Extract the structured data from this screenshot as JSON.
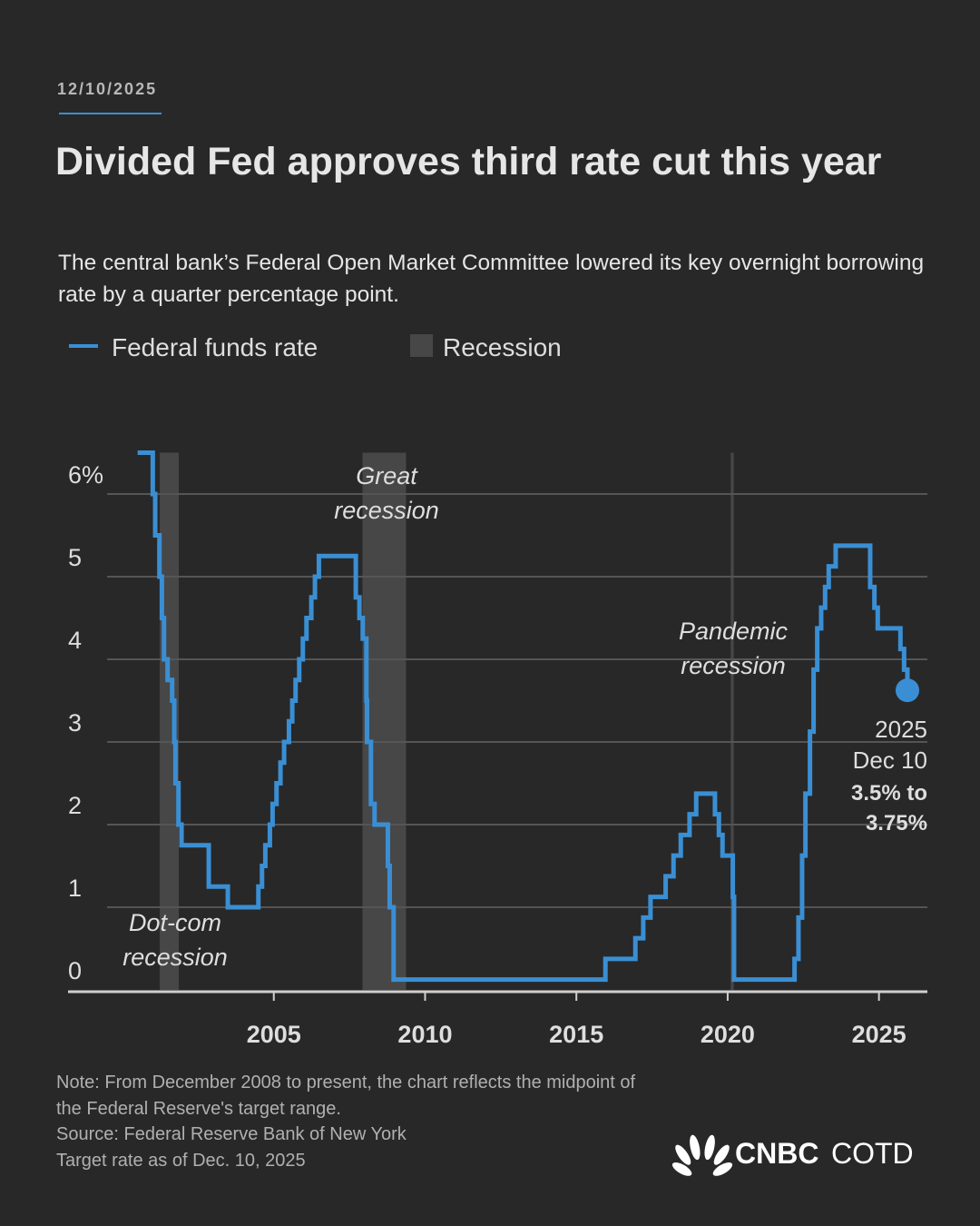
{
  "header": {
    "date": "12/10/2025",
    "title": "Divided Fed approves third rate cut this year",
    "subtitle": "The central bank’s Federal Open Market Committee lowered its key overnight borrowing rate by a quarter percentage point."
  },
  "chart_data": {
    "type": "step-line",
    "series": [
      {
        "name": "Federal funds rate",
        "color": "#3a8fd4",
        "x": [
          2000.5,
          2001.0,
          2001.08,
          2001.22,
          2001.3,
          2001.37,
          2001.49,
          2001.64,
          2001.71,
          2001.75,
          2001.85,
          2001.95,
          2002.85,
          2003.48,
          2004.49,
          2004.61,
          2004.72,
          2004.87,
          2004.96,
          2005.09,
          2005.22,
          2005.34,
          2005.5,
          2005.61,
          2005.72,
          2005.84,
          2005.96,
          2006.08,
          2006.24,
          2006.36,
          2006.49,
          2007.71,
          2007.83,
          2007.94,
          2008.06,
          2008.08,
          2008.21,
          2008.33,
          2008.77,
          2008.83,
          2008.96,
          2015.96,
          2016.95,
          2017.21,
          2017.45,
          2017.95,
          2018.21,
          2018.45,
          2018.74,
          2018.96,
          2019.58,
          2019.71,
          2019.83,
          2020.17,
          2020.21,
          2022.21,
          2022.34,
          2022.46,
          2022.57,
          2022.72,
          2022.84,
          2022.96,
          2023.09,
          2023.22,
          2023.34,
          2023.57,
          2024.71,
          2024.85,
          2024.96,
          2025.71,
          2025.83,
          2025.94
        ],
        "values": [
          6.5,
          6.0,
          5.5,
          5.0,
          4.5,
          4.0,
          3.75,
          3.5,
          3.0,
          2.5,
          2.0,
          1.75,
          1.25,
          1.0,
          1.25,
          1.5,
          1.75,
          2.0,
          2.25,
          2.5,
          2.75,
          3.0,
          3.25,
          3.5,
          3.75,
          4.0,
          4.25,
          4.5,
          4.75,
          5.0,
          5.25,
          4.75,
          4.5,
          4.25,
          3.5,
          3.0,
          2.25,
          2.0,
          1.5,
          1.0,
          0.125,
          0.375,
          0.625,
          0.875,
          1.125,
          1.375,
          1.625,
          1.875,
          2.125,
          2.375,
          2.125,
          1.875,
          1.625,
          1.125,
          0.125,
          0.375,
          0.875,
          1.625,
          2.375,
          3.125,
          3.875,
          4.375,
          4.625,
          4.875,
          5.125,
          5.375,
          4.875,
          4.625,
          4.375,
          4.125,
          3.875,
          3.625
        ]
      }
    ],
    "recessions": {
      "name": "Recession",
      "color": "#474747",
      "spans": [
        [
          2001.23,
          2001.86
        ],
        [
          2007.93,
          2009.37
        ],
        [
          2020.1,
          2020.2
        ]
      ]
    },
    "xlim": [
      1998.2,
      2026.6
    ],
    "xticks": [
      2005,
      2010,
      2015,
      2020,
      2025
    ],
    "ylim": [
      0,
      6.5
    ],
    "yticks": [
      0,
      1,
      2,
      3,
      4,
      5,
      {
        "value": 6,
        "label": "6%"
      }
    ],
    "grid": true,
    "annotations": [
      {
        "lines": [
          "Dot-com",
          "recession"
        ]
      },
      {
        "lines": [
          "Great",
          "recession"
        ]
      },
      {
        "lines": [
          "Pandemic",
          "recession"
        ]
      }
    ],
    "end_label": {
      "lines": [
        "2025",
        "Dec 10"
      ],
      "range_lines": [
        "3.5% to",
        "3.75%"
      ]
    }
  },
  "footer": {
    "notes": [
      "Note: From December 2008 to present, the chart reflects the midpoint of the Federal Reserve's target range.",
      "Source: Federal Reserve Bank of New York",
      "Target rate as of Dec. 10, 2025"
    ],
    "logo_bold": "CNBC",
    "logo_light": "COTD"
  }
}
